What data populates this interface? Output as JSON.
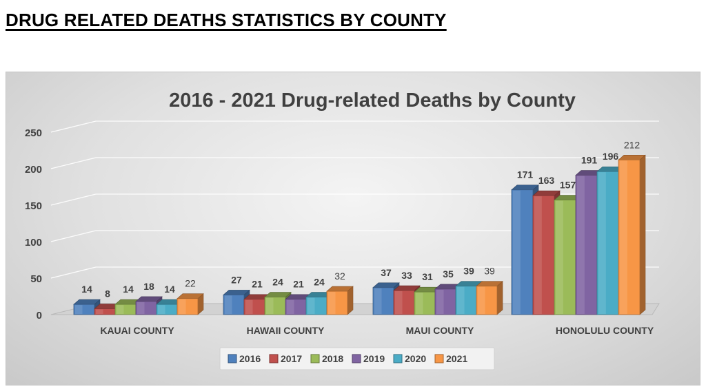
{
  "page": {
    "heading": "DRUG RELATED DEATHS STATISTICS BY COUNTY"
  },
  "chart_data": {
    "type": "bar",
    "title": "2016 - 2021 Drug-related Deaths by County",
    "categories": [
      "KAUAI COUNTY",
      "HAWAII COUNTY",
      "MAUI COUNTY",
      "HONOLULU COUNTY"
    ],
    "series": [
      {
        "name": "2016",
        "color": "#4f81bd",
        "values": [
          14,
          27,
          37,
          171
        ]
      },
      {
        "name": "2017",
        "color": "#c0504d",
        "values": [
          8,
          21,
          33,
          163
        ]
      },
      {
        "name": "2018",
        "color": "#9bbb59",
        "values": [
          14,
          24,
          31,
          157
        ]
      },
      {
        "name": "2019",
        "color": "#8064a2",
        "values": [
          18,
          21,
          35,
          191
        ]
      },
      {
        "name": "2020",
        "color": "#4bacc6",
        "values": [
          14,
          24,
          39,
          196
        ]
      },
      {
        "name": "2021",
        "color": "#f79646",
        "values": [
          22,
          32,
          39,
          212
        ]
      }
    ],
    "ylim": [
      0,
      250
    ],
    "yticks": [
      0,
      50,
      100,
      150,
      200,
      250
    ],
    "grid": true,
    "legend": "bottom",
    "style": "3d-clustered-column"
  }
}
